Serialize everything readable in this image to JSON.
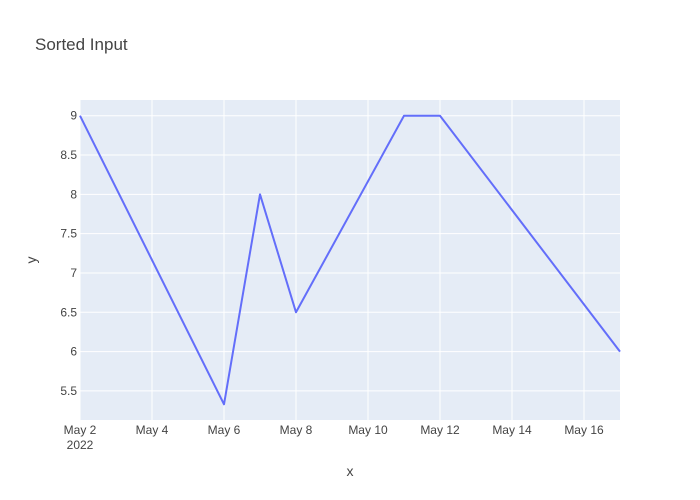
{
  "chart_data": {
    "type": "line",
    "title": "Sorted Input",
    "xlabel": "x",
    "ylabel": "y",
    "x": [
      "2022-05-02",
      "2022-05-06",
      "2022-05-07",
      "2022-05-08",
      "2022-05-11",
      "2022-05-12",
      "2022-05-17"
    ],
    "series": [
      {
        "values": [
          9,
          5.33,
          8,
          6.5,
          9,
          9,
          6
        ]
      }
    ],
    "xlim": [
      "2022-05-02",
      "2022-05-17"
    ],
    "ylim": [
      5.13,
      9.2
    ],
    "x_ticks": [
      {
        "date": "2022-05-02",
        "label": "May 2",
        "sublabel": "2022"
      },
      {
        "date": "2022-05-04",
        "label": "May 4"
      },
      {
        "date": "2022-05-06",
        "label": "May 6"
      },
      {
        "date": "2022-05-08",
        "label": "May 8"
      },
      {
        "date": "2022-05-10",
        "label": "May 10"
      },
      {
        "date": "2022-05-12",
        "label": "May 12"
      },
      {
        "date": "2022-05-14",
        "label": "May 14"
      },
      {
        "date": "2022-05-16",
        "label": "May 16"
      }
    ],
    "y_ticks": [
      {
        "value": 5.5,
        "label": "5.5"
      },
      {
        "value": 6,
        "label": "6"
      },
      {
        "value": 6.5,
        "label": "6.5"
      },
      {
        "value": 7,
        "label": "7"
      },
      {
        "value": 7.5,
        "label": "7.5"
      },
      {
        "value": 8,
        "label": "8"
      },
      {
        "value": 8.5,
        "label": "8.5"
      },
      {
        "value": 9,
        "label": "9"
      }
    ],
    "grid": true,
    "colors": {
      "plot_bg": "#e5ecf6",
      "grid": "#ffffff",
      "line": "#636efa",
      "text": "#444444"
    }
  }
}
